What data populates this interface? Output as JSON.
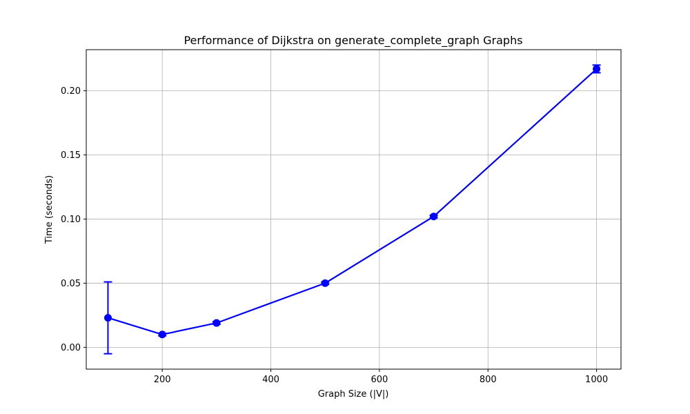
{
  "chart_data": {
    "type": "line",
    "title": "Performance of Dijkstra on generate_complete_graph Graphs",
    "xlabel": "Graph Size (|V|)",
    "ylabel": "Time (seconds)",
    "xlim": [
      60,
      1045
    ],
    "ylim": [
      -0.017,
      0.232
    ],
    "xticks": [
      200,
      400,
      600,
      800,
      1000
    ],
    "xtick_labels": [
      "200",
      "400",
      "600",
      "800",
      "1000"
    ],
    "yticks": [
      0.0,
      0.05,
      0.1,
      0.15,
      0.2
    ],
    "ytick_labels": [
      "0.00",
      "0.05",
      "0.10",
      "0.15",
      "0.20"
    ],
    "grid": true,
    "series": [
      {
        "color": "#0000ff",
        "x": [
          100,
          200,
          300,
          500,
          700,
          1000
        ],
        "y": [
          0.023,
          0.01,
          0.019,
          0.05,
          0.102,
          0.217
        ],
        "yerr": [
          0.028,
          0.001,
          0.001,
          0.001,
          0.001,
          0.003
        ]
      }
    ]
  }
}
